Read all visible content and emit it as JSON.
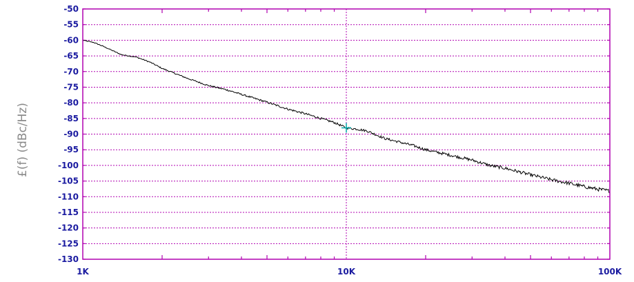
{
  "chart_data": {
    "type": "line",
    "title": "",
    "xlabel": "",
    "ylabel": "£(f) (dBc/Hz)",
    "x_scale": "log",
    "xlim": [
      1000,
      100000
    ],
    "ylim": [
      -130,
      -50
    ],
    "x_ticks": [
      {
        "value": 1000,
        "label": "1K"
      },
      {
        "value": 10000,
        "label": "10K"
      },
      {
        "value": 100000,
        "label": "100K"
      }
    ],
    "y_ticks": [
      {
        "value": -50,
        "label": "-50"
      },
      {
        "value": -55,
        "label": "-55"
      },
      {
        "value": -60,
        "label": "-60"
      },
      {
        "value": -65,
        "label": "-65"
      },
      {
        "value": -70,
        "label": "-70"
      },
      {
        "value": -75,
        "label": "-75"
      },
      {
        "value": -80,
        "label": "-80"
      },
      {
        "value": -85,
        "label": "-85"
      },
      {
        "value": -90,
        "label": "-90"
      },
      {
        "value": -95,
        "label": "-95"
      },
      {
        "value": -100,
        "label": "-100"
      },
      {
        "value": -105,
        "label": "-105"
      },
      {
        "value": -110,
        "label": "-110"
      },
      {
        "value": -115,
        "label": "-115"
      },
      {
        "value": -120,
        "label": "-120"
      },
      {
        "value": -125,
        "label": "-125"
      },
      {
        "value": -130,
        "label": "-130"
      }
    ],
    "grid": true,
    "colors": {
      "frame": "#b000b0",
      "grid": "#b000b0",
      "tick_labels": "#1a1aa0",
      "axis_title": "#8a8a8a",
      "trace": "#000000",
      "marker": "#00a8a8"
    },
    "series": [
      {
        "x": [
          1000,
          1100,
          1200,
          1400,
          1600,
          1800,
          2000,
          2500,
          3000,
          3500,
          4000,
          5000,
          6000,
          7000,
          8000,
          9000,
          10000,
          11000,
          12000,
          14000,
          16000,
          18000,
          20000,
          25000,
          30000,
          35000,
          40000,
          50000,
          60000,
          70000,
          80000,
          90000,
          100000
        ],
        "y": [
          -60,
          -60.7,
          -62,
          -64.6,
          -65.4,
          -67,
          -69,
          -72.2,
          -74.5,
          -75.8,
          -77.3,
          -79.8,
          -82,
          -83.5,
          -85,
          -86.3,
          -88,
          -88.4,
          -89,
          -91.4,
          -92.6,
          -93.7,
          -95,
          -96.8,
          -98.3,
          -100,
          -100.9,
          -103,
          -104.6,
          -105.7,
          -106.8,
          -107.6,
          -108.2
        ]
      }
    ],
    "marker": {
      "x": 10000,
      "y": -88,
      "shape": "cross"
    }
  }
}
